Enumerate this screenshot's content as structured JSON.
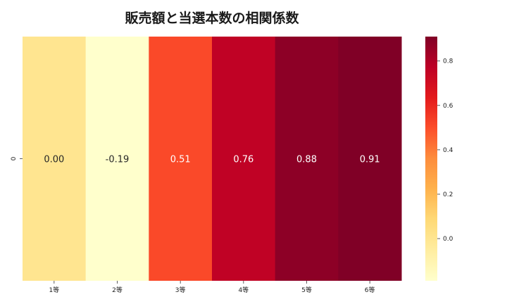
{
  "chart_data": {
    "type": "heatmap",
    "title": "販売額と当選本数の相関係数",
    "rows": [
      "0"
    ],
    "categories": [
      "1等",
      "2等",
      "3等",
      "4等",
      "5等",
      "6等"
    ],
    "values": [
      [
        0.0,
        -0.19,
        0.51,
        0.76,
        0.88,
        0.91
      ]
    ],
    "value_labels": [
      "0.00",
      "-0.19",
      "0.51",
      "0.76",
      "0.88",
      "0.91"
    ],
    "colorbar": {
      "range": [
        -0.19,
        0.91
      ],
      "ticks": [
        0.0,
        0.2,
        0.4,
        0.6,
        0.8
      ],
      "tick_labels": [
        "0.0",
        "0.2",
        "0.4",
        "0.6",
        "0.8"
      ]
    },
    "colormap": [
      "#ffffcc",
      "#ffeda0",
      "#fed976",
      "#feb24c",
      "#fd8d3c",
      "#fc4e2a",
      "#e31a1c",
      "#bd0026",
      "#800026"
    ],
    "xlabel": "",
    "ylabel": ""
  }
}
